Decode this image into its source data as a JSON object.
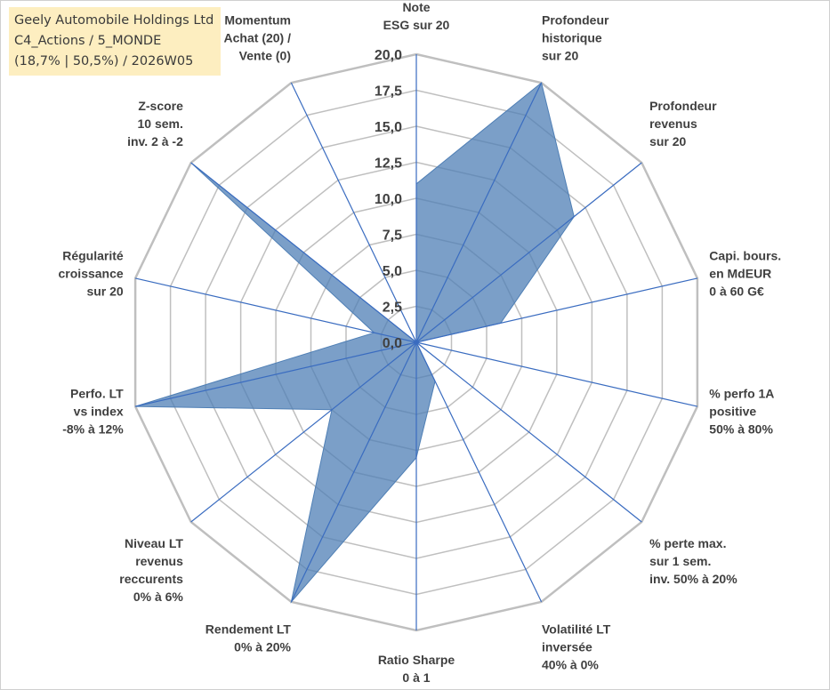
{
  "title": {
    "line1": "Geely Automobile Holdings Ltd",
    "line2": "C4_Actions / 5_MONDE",
    "line3": "(18,7% | 50,5%) / 2026W05"
  },
  "chart_data": {
    "type": "radar",
    "scale_max": 20,
    "scale_step": 2.5,
    "tick_labels": [
      "0,0",
      "2,5",
      "5,0",
      "7,5",
      "10,0",
      "12,5",
      "15,0",
      "17,5",
      "20,0"
    ],
    "axes": [
      {
        "label": [
          "Note",
          "ESG sur 20"
        ],
        "value": 11.0
      },
      {
        "label": [
          "Profondeur",
          "historique",
          "sur 20"
        ],
        "value": 20.0
      },
      {
        "label": [
          "Profondeur",
          "revenus",
          "sur 20"
        ],
        "value": 14.0
      },
      {
        "label": [
          "Capi. bours.",
          "en MdEUR",
          "0 à 60 G€"
        ],
        "value": 6.0
      },
      {
        "label": [
          "% perfo 1A",
          "positive",
          "50% à 80%"
        ],
        "value": 0.0
      },
      {
        "label": [
          "% perte max.",
          "sur 1 sem.",
          "inv. 50% à 20%"
        ],
        "value": 0.0
      },
      {
        "label": [
          "Volatilité LT",
          "inversée",
          "40% à 0%"
        ],
        "value": 3.0
      },
      {
        "label": [
          "Ratio Sharpe",
          "0 à 1"
        ],
        "value": 8.0
      },
      {
        "label": [
          "Rendement LT",
          "0% à 20%"
        ],
        "value": 20.0
      },
      {
        "label": [
          "Niveau LT",
          "revenus",
          "reccurents",
          "0% à 6%"
        ],
        "value": 7.5
      },
      {
        "label": [
          "Perfo. LT",
          "vs index",
          "-8% à 12%"
        ],
        "value": 20.0
      },
      {
        "label": [
          "Régularité",
          "croissance",
          "sur 20"
        ],
        "value": 3.0
      },
      {
        "label": [
          "Z-score",
          "10 sem.",
          "inv. 2 à -2"
        ],
        "value": 20.0
      },
      {
        "label": [
          "Momentum",
          "Achat (20) /",
          "Vente (0)"
        ],
        "value": 0.0
      }
    ],
    "colors": {
      "fill": "#4f7fb5",
      "fill_opacity": 0.75,
      "spoke": "#3a6cc0",
      "grid": "#bfbfbf"
    }
  }
}
